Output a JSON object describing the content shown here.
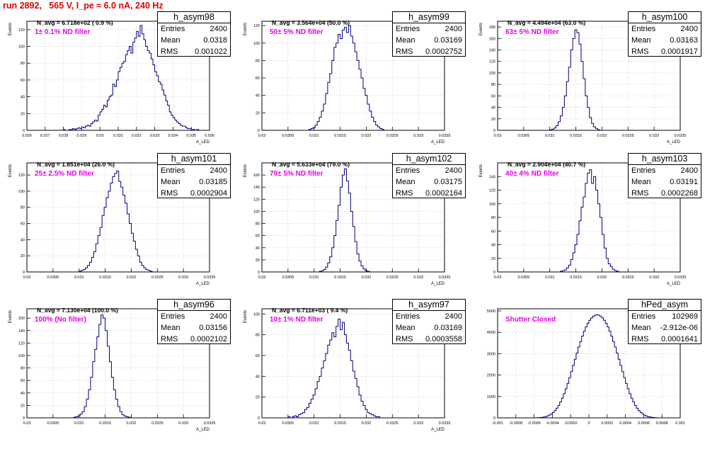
{
  "page_title": "run 2892,   565 V, I_pe ≈ 6.0 nA, 240 Hz",
  "colors": {
    "title": "#e00000",
    "annotation": "#e600e6",
    "hist_line": "#00007a",
    "grid": "#bbbbbb"
  },
  "stat_labels": {
    "entries": "Entries",
    "mean": "Mean",
    "rms": "RMS"
  },
  "chart_data": [
    {
      "type": "histogram",
      "name": "h_asym98",
      "n_avg": "N_avg = 6.718e+02 ( 0.9 %)",
      "filter": "1± 0.1% ND filter",
      "stats": {
        "entries": "2400",
        "mean": "0.0318",
        "rms": "0.001022"
      },
      "ylabel": "Events",
      "xlabel": "A_LED",
      "xlim": [
        0.026,
        0.036
      ],
      "ylim": [
        0,
        130
      ],
      "xticks": [
        0.026,
        0.027,
        0.028,
        0.029,
        0.03,
        0.031,
        0.032,
        0.033,
        0.034,
        0.035,
        0.036
      ],
      "xtick_labels": [
        "0.026",
        "0.027",
        "0.028",
        "0.029",
        "0.03",
        "0.031",
        "0.032",
        "0.033",
        "0.034",
        "0.035",
        "0.036"
      ],
      "yticks": [
        0,
        20,
        40,
        60,
        80,
        100,
        120
      ],
      "ytick_labels": [
        "0",
        "20",
        "40",
        "60",
        "80",
        "100",
        "120"
      ],
      "bins": {
        "start": 0.028,
        "width": 0.0001,
        "counts": [
          1,
          0,
          0,
          1,
          1,
          2,
          1,
          2,
          3,
          2,
          4,
          3,
          5,
          6,
          5,
          8,
          10,
          12,
          11,
          18,
          22,
          25,
          30,
          28,
          36,
          40,
          42,
          55,
          52,
          60,
          70,
          75,
          80,
          82,
          90,
          95,
          100,
          92,
          105,
          110,
          118,
          112,
          125,
          115,
          108,
          100,
          95,
          92,
          85,
          78,
          70,
          65,
          58,
          55,
          48,
          42,
          35,
          30,
          22,
          18,
          15,
          12,
          10,
          8,
          6,
          5,
          5,
          3,
          2,
          2,
          1,
          1,
          0,
          1
        ]
      }
    },
    {
      "type": "histogram",
      "name": "h_asym99",
      "n_avg": "N_avg = 3.564e+04 (50.0 %)",
      "filter": "50± 5% ND filter",
      "stats": {
        "entries": "2400",
        "mean": "0.03169",
        "rms": "0.0002752"
      },
      "ylabel": "Events",
      "xlabel": "A_LED",
      "xlim": [
        0.03,
        0.0335
      ],
      "ylim": [
        0,
        125
      ],
      "xticks": [
        0.03,
        0.0305,
        0.031,
        0.0315,
        0.032,
        0.0325,
        0.033,
        0.0335
      ],
      "xtick_labels": [
        "0.03",
        "0.0305",
        "0.031",
        "0.0315",
        "0.032",
        "0.0325",
        "0.033",
        "0.0335"
      ],
      "yticks": [
        0,
        20,
        40,
        60,
        80,
        100,
        120
      ],
      "ytick_labels": [
        "0",
        "20",
        "40",
        "60",
        "80",
        "100",
        "120"
      ],
      "bins": {
        "start": 0.0309,
        "width": 4e-05,
        "counts": [
          1,
          2,
          3,
          6,
          10,
          15,
          22,
          30,
          42,
          55,
          65,
          80,
          95,
          100,
          110,
          105,
          115,
          118,
          112,
          120,
          108,
          100,
          90,
          80,
          70,
          60,
          48,
          40,
          30,
          22,
          15,
          10,
          6,
          4,
          2,
          1
        ]
      }
    },
    {
      "type": "histogram",
      "name": "h_asym100",
      "n_avg": "N_avg = 4.494e+04 (63.0 %)",
      "filter": "63± 5% ND filter",
      "stats": {
        "entries": "2400",
        "mean": "0.03163",
        "rms": "0.0001917"
      },
      "ylabel": "Events",
      "xlabel": "A_LED",
      "xlim": [
        0.03,
        0.0335
      ],
      "ylim": [
        0,
        190
      ],
      "xticks": [
        0.03,
        0.0305,
        0.031,
        0.0315,
        0.032,
        0.0325,
        0.033,
        0.0335
      ],
      "xtick_labels": [
        "0.03",
        "0.0305",
        "0.031",
        "0.0315",
        "0.032",
        "0.0325",
        "0.033",
        "0.0335"
      ],
      "yticks": [
        0,
        20,
        40,
        60,
        80,
        100,
        120,
        140,
        160,
        180
      ],
      "ytick_labels": [
        "0",
        "20",
        "40",
        "60",
        "80",
        "100",
        "120",
        "140",
        "160",
        "180"
      ],
      "bins": {
        "start": 0.031,
        "width": 4e-05,
        "counts": [
          1,
          2,
          4,
          8,
          15,
          25,
          40,
          60,
          85,
          110,
          140,
          160,
          175,
          170,
          150,
          120,
          90,
          60,
          40,
          22,
          12,
          6,
          3,
          1
        ]
      }
    },
    {
      "type": "histogram",
      "name": "h_asym101",
      "n_avg": "N_avg = 1.851e+04 (26.0 %)",
      "filter": "25± 2.5% ND filter",
      "stats": {
        "entries": "2400",
        "mean": "0.03185",
        "rms": "0.0002904"
      },
      "ylabel": "Events",
      "xlabel": "A_LED",
      "xlim": [
        0.03,
        0.0335
      ],
      "ylim": [
        0,
        135
      ],
      "xticks": [
        0.03,
        0.0305,
        0.031,
        0.0315,
        0.032,
        0.0325,
        0.033,
        0.0335
      ],
      "xtick_labels": [
        "0.03",
        "0.0305",
        "0.031",
        "0.0315",
        "0.032",
        "0.0325",
        "0.033",
        "0.0335"
      ],
      "yticks": [
        0,
        20,
        40,
        60,
        80,
        100,
        120
      ],
      "ytick_labels": [
        "0",
        "20",
        "40",
        "60",
        "80",
        "100",
        "120"
      ],
      "bins": {
        "start": 0.031,
        "width": 4e-05,
        "counts": [
          1,
          2,
          3,
          5,
          8,
          12,
          18,
          25,
          35,
          45,
          55,
          70,
          80,
          92,
          100,
          110,
          118,
          122,
          125,
          112,
          105,
          95,
          85,
          72,
          60,
          48,
          38,
          28,
          20,
          12,
          8,
          5,
          3,
          2,
          1
        ]
      }
    },
    {
      "type": "histogram",
      "name": "h_asym102",
      "n_avg": "N_avg = 5.633e+04 (79.0 %)",
      "filter": "79± 5% ND filter",
      "stats": {
        "entries": "2400",
        "mean": "0.03175",
        "rms": "0.0002164"
      },
      "ylabel": "Events",
      "xlabel": "A_LED",
      "xlim": [
        0.03,
        0.0335
      ],
      "ylim": [
        0,
        180
      ],
      "xticks": [
        0.03,
        0.0305,
        0.031,
        0.0315,
        0.032,
        0.0325,
        0.033,
        0.0335
      ],
      "xtick_labels": [
        "0.03",
        "0.0305",
        "0.031",
        "0.0315",
        "0.032",
        "0.0325",
        "0.033",
        "0.0335"
      ],
      "yticks": [
        0,
        20,
        40,
        60,
        80,
        100,
        120,
        140,
        160
      ],
      "ytick_labels": [
        "0",
        "20",
        "40",
        "60",
        "80",
        "100",
        "120",
        "140",
        "160"
      ],
      "bins": {
        "start": 0.0311,
        "width": 4e-05,
        "counts": [
          1,
          2,
          4,
          8,
          15,
          25,
          40,
          60,
          85,
          110,
          140,
          160,
          170,
          150,
          130,
          100,
          75,
          50,
          30,
          18,
          10,
          5,
          2,
          1
        ]
      }
    },
    {
      "type": "histogram",
      "name": "h_asym103",
      "n_avg": "N_avg = 2.904e+04 (40.7 %)",
      "filter": "40± 4% ND filter",
      "stats": {
        "entries": "2400",
        "mean": "0.03191",
        "rms": "0.0002268"
      },
      "ylabel": "Events",
      "xlabel": "A_LED",
      "xlim": [
        0.03,
        0.0335
      ],
      "ylim": [
        0,
        160
      ],
      "xticks": [
        0.03,
        0.0305,
        0.031,
        0.0315,
        0.032,
        0.0325,
        0.033,
        0.0335
      ],
      "xtick_labels": [
        "0.03",
        "0.0305",
        "0.031",
        "0.0315",
        "0.032",
        "0.0325",
        "0.033",
        "0.0335"
      ],
      "yticks": [
        0,
        20,
        40,
        60,
        80,
        100,
        120,
        140
      ],
      "ytick_labels": [
        "0",
        "20",
        "40",
        "60",
        "80",
        "100",
        "120",
        "140"
      ],
      "bins": {
        "start": 0.0312,
        "width": 4e-05,
        "counts": [
          1,
          2,
          3,
          6,
          10,
          18,
          28,
          40,
          55,
          75,
          95,
          110,
          130,
          145,
          150,
          130,
          140,
          120,
          100,
          80,
          55,
          35,
          20,
          12,
          8,
          4,
          2,
          1
        ]
      }
    },
    {
      "type": "histogram",
      "name": "h_asym96",
      "n_avg": "N_avg = 7.130e+04 (100.0 %)",
      "filter": "100% (No filter)",
      "stats": {
        "entries": "2400",
        "mean": "0.03156",
        "rms": "0.0002102"
      },
      "ylabel": "Events",
      "xlabel": "A_LED",
      "xlim": [
        0.03,
        0.0335
      ],
      "ylim": [
        0,
        175
      ],
      "xticks": [
        0.03,
        0.0305,
        0.031,
        0.0315,
        0.032,
        0.0325,
        0.033,
        0.0335
      ],
      "xtick_labels": [
        "0.03",
        "0.0305",
        "0.031",
        "0.0315",
        "0.032",
        "0.0325",
        "0.033",
        "0.0335"
      ],
      "yticks": [
        0,
        20,
        40,
        60,
        80,
        100,
        120,
        140,
        160
      ],
      "ytick_labels": [
        "0",
        "20",
        "40",
        "60",
        "80",
        "100",
        "120",
        "140",
        "160"
      ],
      "bins": {
        "start": 0.0309,
        "width": 4e-05,
        "counts": [
          1,
          2,
          3,
          6,
          10,
          18,
          30,
          45,
          65,
          90,
          110,
          130,
          150,
          165,
          160,
          140,
          115,
          90,
          65,
          45,
          30,
          18,
          10,
          5,
          3,
          2,
          1
        ]
      }
    },
    {
      "type": "histogram",
      "name": "h_asym97",
      "n_avg": "N_avg = 6.711e+03 ( 9.4 %)",
      "filter": "10± 1% ND filter",
      "stats": {
        "entries": "2400",
        "mean": "0.03169",
        "rms": "0.0003558"
      },
      "ylabel": "Events",
      "xlabel": "A_LED",
      "xlim": [
        0.03,
        0.0335
      ],
      "ylim": [
        0,
        105
      ],
      "xticks": [
        0.03,
        0.0305,
        0.031,
        0.0315,
        0.032,
        0.0325,
        0.033,
        0.0335
      ],
      "xtick_labels": [
        "0.03",
        "0.0305",
        "0.031",
        "0.0315",
        "0.032",
        "0.0325",
        "0.033",
        "0.0335"
      ],
      "yticks": [
        0,
        20,
        40,
        60,
        80,
        100
      ],
      "ytick_labels": [
        "0",
        "20",
        "40",
        "60",
        "80",
        "100"
      ],
      "bins": {
        "start": 0.0305,
        "width": 4e-05,
        "counts": [
          1,
          0,
          1,
          2,
          1,
          3,
          4,
          5,
          8,
          10,
          14,
          18,
          22,
          28,
          35,
          40,
          48,
          55,
          62,
          70,
          75,
          82,
          78,
          88,
          95,
          85,
          92,
          80,
          72,
          65,
          55,
          45,
          38,
          30,
          22,
          16,
          12,
          8,
          5,
          4,
          3,
          2,
          1,
          1
        ]
      }
    },
    {
      "type": "histogram",
      "name": "hPed_asym",
      "n_avg": "",
      "filter": "Shutter Closed",
      "stats": {
        "entries": "102969",
        "mean": "-2.912e-06",
        "rms": "0.0001641"
      },
      "ylabel": "",
      "xlabel": "",
      "xlim": [
        -0.001,
        0.001
      ],
      "ylim": [
        0,
        5100
      ],
      "xticks": [
        -0.001,
        -0.0008,
        -0.0006,
        -0.0004,
        -0.0002,
        0,
        0.0002,
        0.0004,
        0.0006,
        0.0008,
        0.001
      ],
      "xtick_labels": [
        "-0.001",
        "-0.0008",
        "-0.0006",
        "-0.0004",
        "-0.0002",
        "0",
        "0.0002",
        "0.0004",
        "0.0006",
        "0.0008",
        "0.001"
      ],
      "yticks": [
        0,
        1000,
        2000,
        3000,
        4000,
        5000
      ],
      "ytick_labels": [
        "0",
        "1000",
        "2000",
        "3000",
        "4000",
        "5000"
      ],
      "bins": {
        "start": -0.0006,
        "width": 2e-05,
        "counts": [
          2,
          4,
          8,
          15,
          25,
          40,
          60,
          90,
          130,
          180,
          250,
          340,
          450,
          580,
          740,
          920,
          1130,
          1360,
          1610,
          1880,
          2160,
          2450,
          2740,
          3030,
          3310,
          3570,
          3820,
          4050,
          4250,
          4420,
          4560,
          4670,
          4750,
          4800,
          4820,
          4800,
          4750,
          4670,
          4560,
          4420,
          4250,
          4050,
          3820,
          3570,
          3310,
          3030,
          2740,
          2450,
          2160,
          1880,
          1610,
          1360,
          1130,
          920,
          740,
          580,
          450,
          340,
          250,
          180,
          130,
          90,
          60,
          40,
          25,
          15,
          8,
          4,
          2
        ]
      }
    }
  ]
}
